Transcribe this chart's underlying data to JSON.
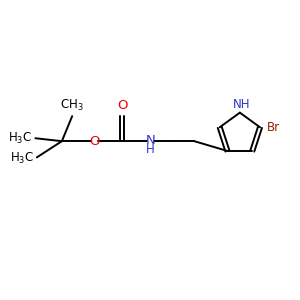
{
  "bg_color": "#ffffff",
  "bond_color": "#000000",
  "oxygen_color": "#ee0000",
  "nitrogen_color": "#3333cc",
  "bromine_color": "#8b2500",
  "font_size": 8.5,
  "fig_size": [
    3.0,
    3.0
  ],
  "dpi": 100,
  "xlim": [
    0,
    10
  ],
  "ylim": [
    0,
    10
  ]
}
